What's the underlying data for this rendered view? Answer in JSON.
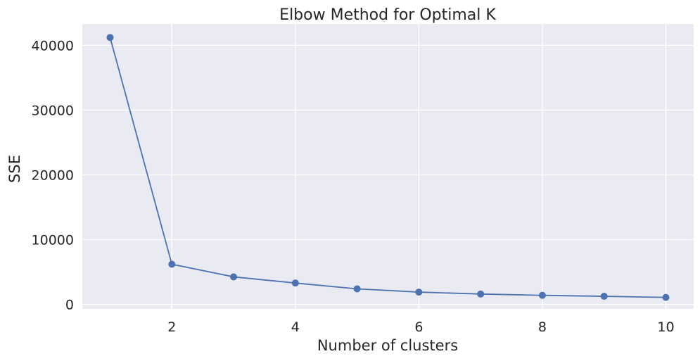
{
  "chart_data": {
    "type": "line",
    "title": "Elbow Method for Optimal K",
    "xlabel": "Number of clusters",
    "ylabel": "SSE",
    "x": [
      1,
      2,
      3,
      4,
      5,
      6,
      7,
      8,
      9,
      10
    ],
    "series": [
      {
        "values": [
          41200,
          6200,
          4250,
          3300,
          2400,
          1900,
          1600,
          1400,
          1250,
          1080
        ],
        "color": "#4c72b0",
        "marker": "circle"
      }
    ],
    "xticks": [
      2,
      4,
      6,
      8,
      10
    ],
    "yticks": [
      0,
      10000,
      20000,
      30000,
      40000
    ],
    "xlim": [
      0.55,
      10.45
    ],
    "ylim": [
      -700,
      43300
    ],
    "grid": true,
    "legend": "none",
    "background_color": "#eaeaf2",
    "grid_color": "#ffffff"
  }
}
